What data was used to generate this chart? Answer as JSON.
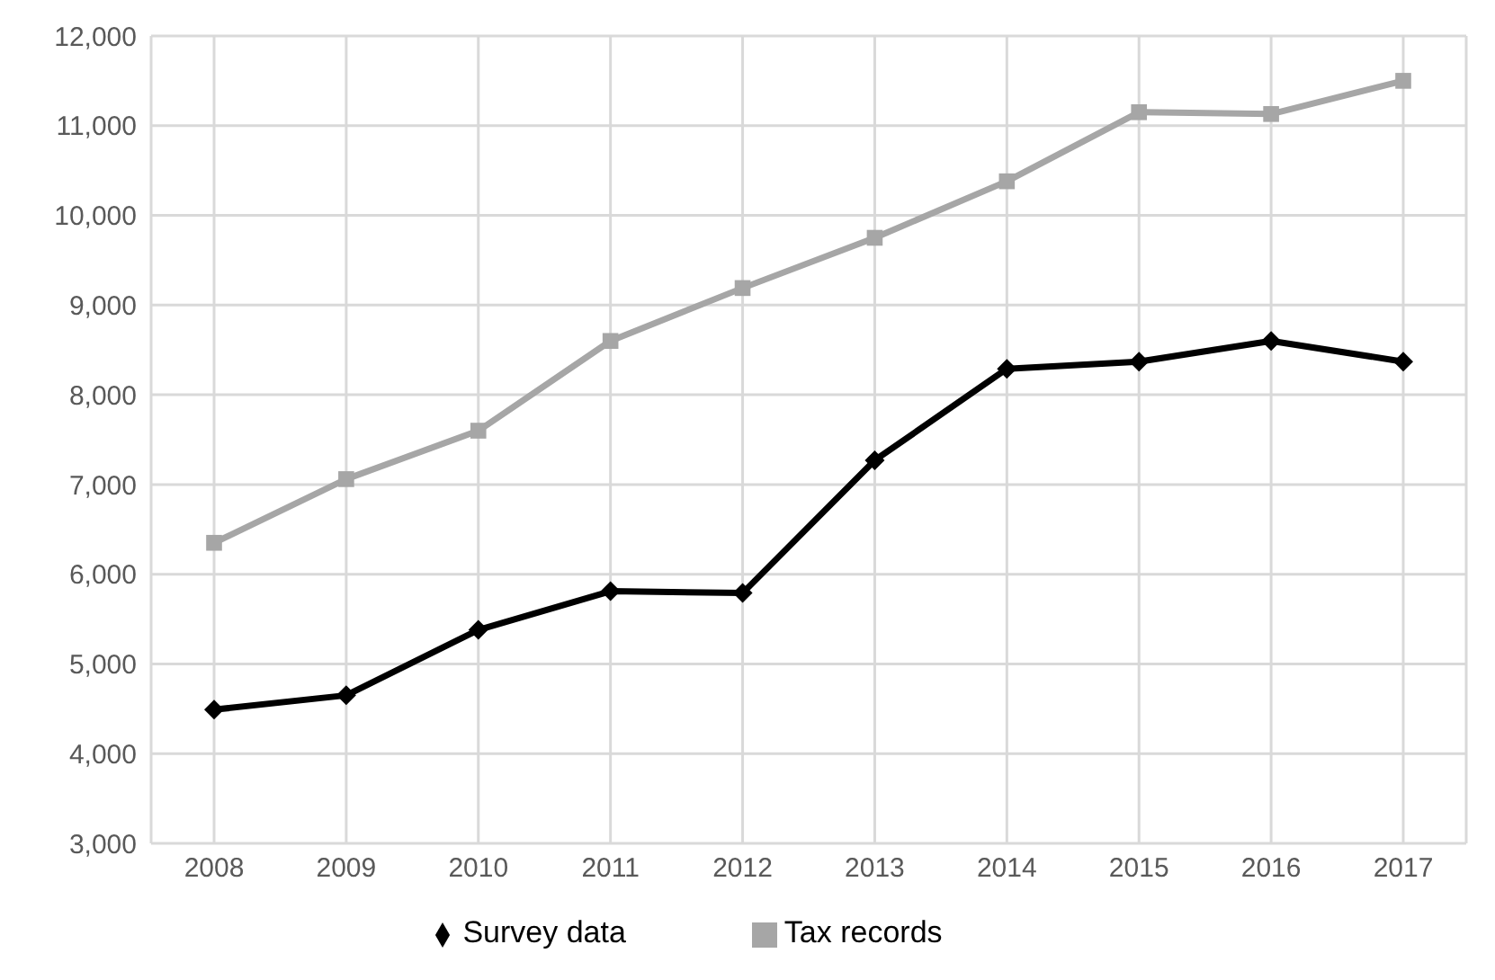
{
  "chart_data": {
    "type": "line",
    "categories": [
      "2008",
      "2009",
      "2010",
      "2011",
      "2012",
      "2013",
      "2014",
      "2015",
      "2016",
      "2017"
    ],
    "series": [
      {
        "name": "Survey data",
        "color": "#000000",
        "marker": "diamond",
        "values": [
          4490,
          4650,
          5380,
          5810,
          5790,
          7270,
          8290,
          8370,
          8600,
          8370
        ]
      },
      {
        "name": "Tax records",
        "color": "#a6a6a6",
        "marker": "square",
        "values": [
          6350,
          7060,
          7600,
          8600,
          9190,
          9750,
          10380,
          11150,
          11130,
          11500
        ]
      }
    ],
    "ylim": [
      3000,
      12000
    ],
    "yticks": [
      {
        "value": 3000,
        "label": "3,000"
      },
      {
        "value": 4000,
        "label": "4,000"
      },
      {
        "value": 5000,
        "label": "5,000"
      },
      {
        "value": 6000,
        "label": "6,000"
      },
      {
        "value": 7000,
        "label": "7,000"
      },
      {
        "value": 8000,
        "label": "8,000"
      },
      {
        "value": 9000,
        "label": "9,000"
      },
      {
        "value": 10000,
        "label": "10,000"
      },
      {
        "value": 11000,
        "label": "11,000"
      },
      {
        "value": 12000,
        "label": "12,000"
      }
    ],
    "grid": true,
    "legend": "bottom"
  }
}
